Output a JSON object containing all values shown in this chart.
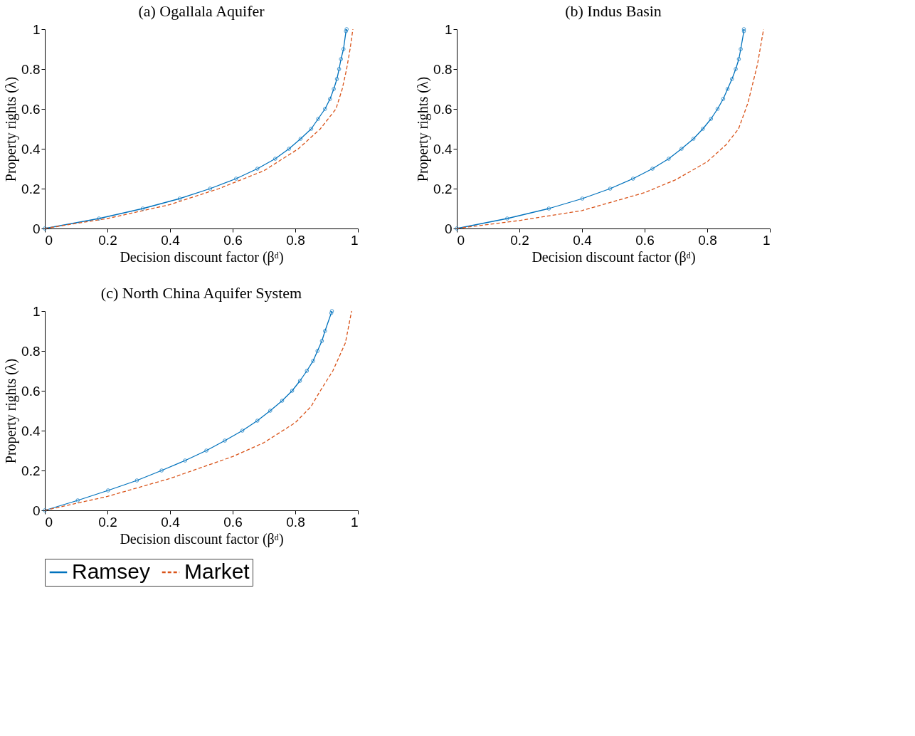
{
  "chart_data": [
    {
      "type": "line",
      "title": "(a) Ogallala Aquifer",
      "xlabel": "Decision discount factor (βᵈ)",
      "ylabel": "Property rights (λ)",
      "xlim": [
        0,
        1
      ],
      "ylim": [
        0,
        1
      ],
      "xticks": [
        0,
        0.2,
        0.4,
        0.6,
        0.8,
        1
      ],
      "yticks": [
        0,
        0.2,
        0.4,
        0.6,
        0.8,
        1
      ],
      "grid": false,
      "legend": "bottom",
      "series": [
        {
          "name": "Ramsey",
          "color": "#0072bd",
          "marker": "circle",
          "line_style": "solid",
          "x": [
            0,
            0.173,
            0.313,
            0.431,
            0.528,
            0.611,
            0.679,
            0.736,
            0.78,
            0.817,
            0.851,
            0.873,
            0.895,
            0.911,
            0.923,
            0.933,
            0.94,
            0.946,
            0.954,
            0.962,
            0.964
          ],
          "values": [
            0,
            0.05,
            0.1,
            0.15,
            0.2,
            0.25,
            0.3,
            0.35,
            0.4,
            0.45,
            0.5,
            0.55,
            0.6,
            0.65,
            0.7,
            0.75,
            0.8,
            0.85,
            0.9,
            0.99,
            1
          ]
        },
        {
          "name": "Market",
          "color": "#d95319",
          "marker": "none",
          "line_style": "dashed",
          "x": [
            0,
            0.2,
            0.4,
            0.556,
            0.7,
            0.81,
            0.88,
            0.93,
            0.95,
            0.964,
            0.975,
            0.984
          ],
          "values": [
            0,
            0.05,
            0.12,
            0.2,
            0.29,
            0.4,
            0.5,
            0.6,
            0.7,
            0.8,
            0.9,
            1
          ]
        }
      ]
    },
    {
      "type": "line",
      "title": "(b) Indus Basin",
      "xlabel": "Decision discount factor (βᵈ)",
      "ylabel": "Property rights (λ)",
      "xlim": [
        0,
        1
      ],
      "ylim": [
        0,
        1
      ],
      "xticks": [
        0,
        0.2,
        0.4,
        0.6,
        0.8,
        1
      ],
      "yticks": [
        0,
        0.2,
        0.4,
        0.6,
        0.8,
        1
      ],
      "grid": false,
      "legend": "bottom",
      "series": [
        {
          "name": "Ramsey",
          "color": "#0072bd",
          "marker": "circle",
          "line_style": "solid",
          "x": [
            0,
            0.161,
            0.294,
            0.401,
            0.49,
            0.563,
            0.625,
            0.677,
            0.718,
            0.756,
            0.786,
            0.812,
            0.833,
            0.851,
            0.865,
            0.879,
            0.891,
            0.901,
            0.907,
            0.917,
            0.917
          ],
          "values": [
            0,
            0.05,
            0.1,
            0.15,
            0.2,
            0.25,
            0.3,
            0.35,
            0.4,
            0.45,
            0.5,
            0.55,
            0.6,
            0.65,
            0.7,
            0.75,
            0.8,
            0.85,
            0.9,
            0.99,
            1
          ]
        },
        {
          "name": "Market",
          "color": "#d95319",
          "marker": "none",
          "line_style": "dashed",
          "x": [
            0,
            0.2,
            0.4,
            0.6,
            0.7,
            0.8,
            0.86,
            0.9,
            0.93,
            0.96,
            0.98
          ],
          "values": [
            0,
            0.04,
            0.09,
            0.18,
            0.245,
            0.335,
            0.42,
            0.5,
            0.63,
            0.82,
            1
          ]
        }
      ]
    },
    {
      "type": "line",
      "title": "(c) North China Aquifer System",
      "xlabel": "Decision discount factor (βᵈ)",
      "ylabel": "Property rights (λ)",
      "xlim": [
        0,
        1
      ],
      "ylim": [
        0,
        1
      ],
      "xticks": [
        0,
        0.2,
        0.4,
        0.6,
        0.8,
        1
      ],
      "yticks": [
        0,
        0.2,
        0.4,
        0.6,
        0.8,
        1
      ],
      "grid": false,
      "legend": "bottom",
      "series": [
        {
          "name": "Ramsey",
          "color": "#0072bd",
          "marker": "circle",
          "line_style": "solid",
          "x": [
            0,
            0.105,
            0.202,
            0.294,
            0.373,
            0.448,
            0.516,
            0.575,
            0.631,
            0.679,
            0.72,
            0.758,
            0.79,
            0.815,
            0.837,
            0.857,
            0.871,
            0.885,
            0.895,
            0.915,
            0.917
          ],
          "values": [
            0,
            0.05,
            0.1,
            0.15,
            0.2,
            0.25,
            0.3,
            0.35,
            0.4,
            0.45,
            0.5,
            0.55,
            0.6,
            0.65,
            0.7,
            0.75,
            0.8,
            0.85,
            0.9,
            0.99,
            1
          ]
        },
        {
          "name": "Market",
          "color": "#d95319",
          "marker": "none",
          "line_style": "dashed",
          "x": [
            0,
            0.2,
            0.4,
            0.6,
            0.7,
            0.8,
            0.85,
            0.88,
            0.92,
            0.96,
            0.98
          ],
          "values": [
            0,
            0.07,
            0.16,
            0.27,
            0.34,
            0.44,
            0.52,
            0.6,
            0.7,
            0.84,
            1
          ]
        }
      ]
    }
  ]
}
